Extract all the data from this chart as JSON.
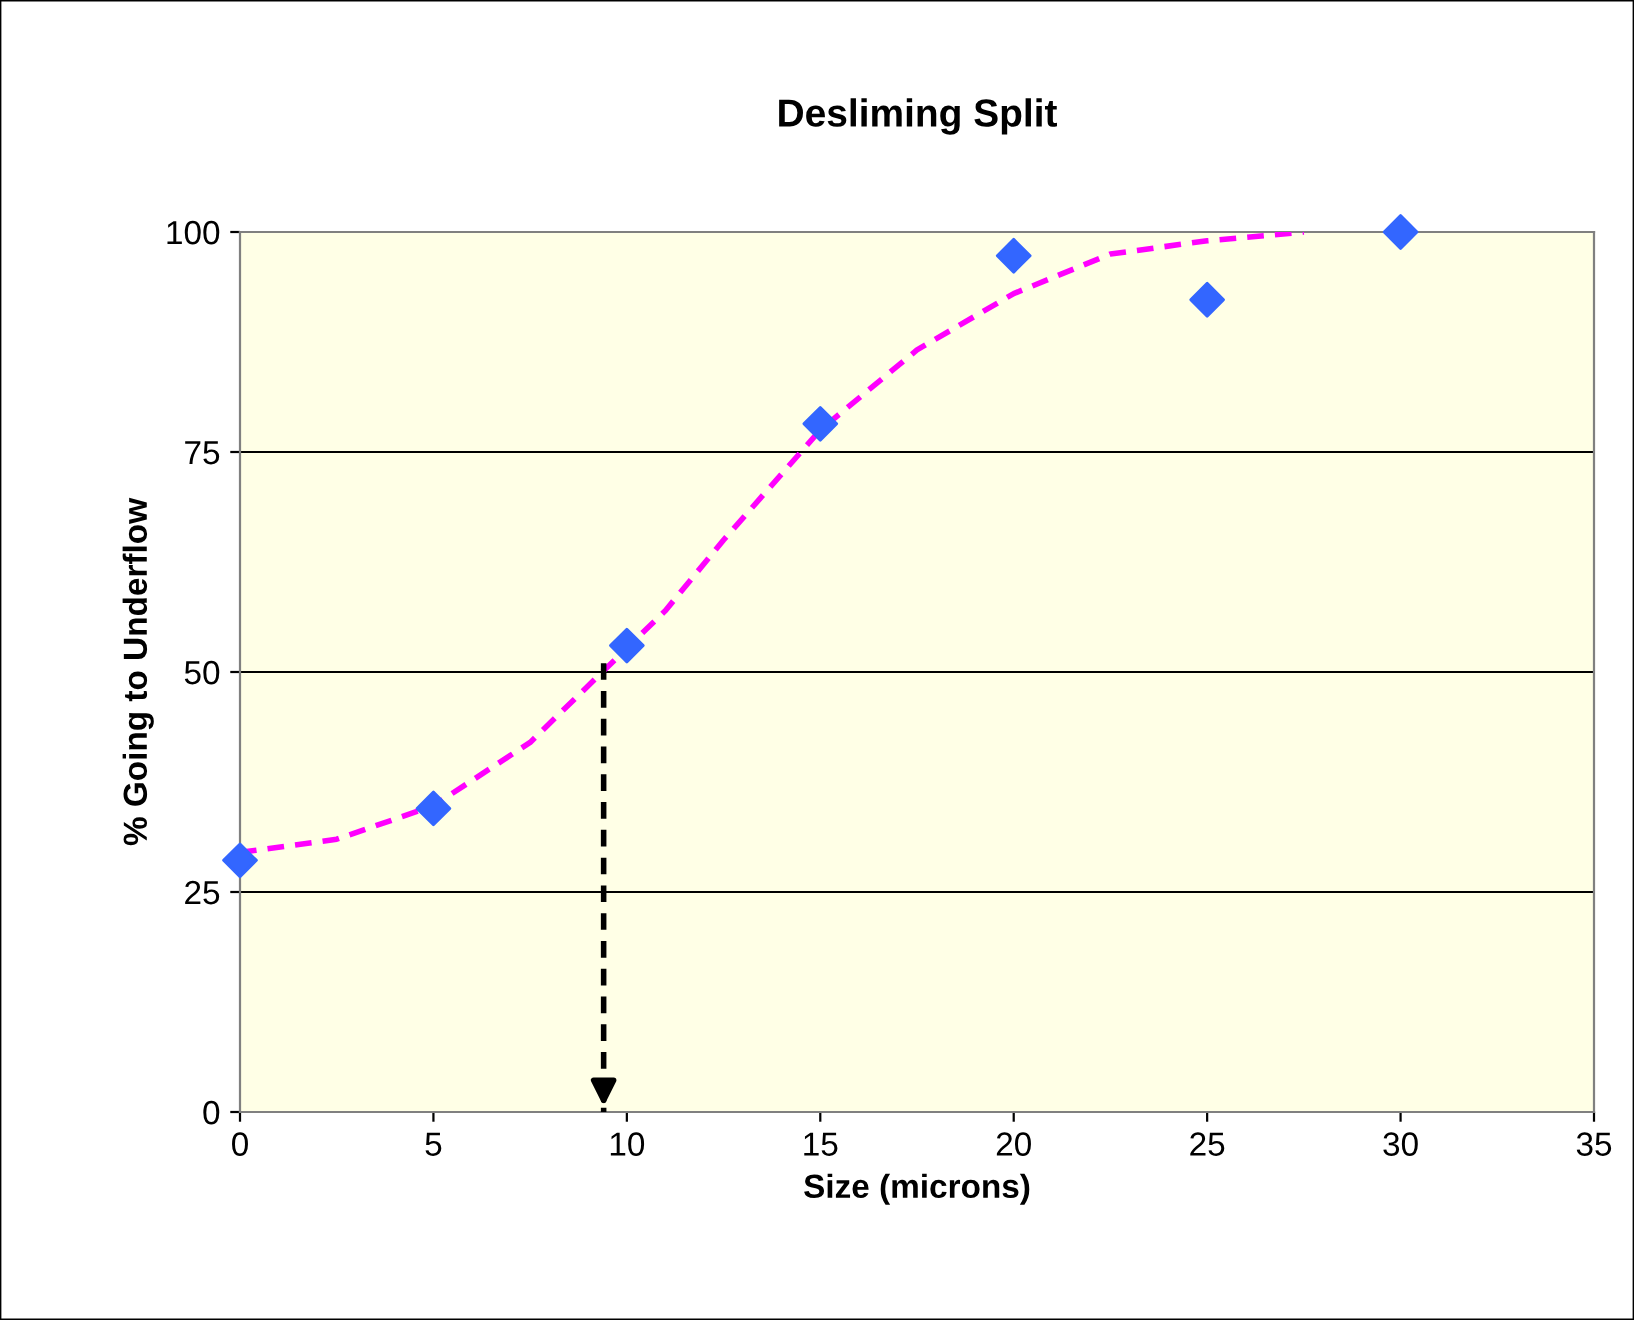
{
  "chart_data": {
    "type": "scatter",
    "title": "Desliming Split",
    "xlabel": "Size (microns)",
    "ylabel": "% Going to Underflow",
    "series": [
      {
        "color": "#3366ff",
        "marker": "diamond",
        "x": [
          0,
          5,
          10,
          15,
          20,
          25,
          30
        ],
        "values": [
          28.6,
          34.5,
          53,
          78.2,
          97.3,
          92.3,
          100
        ]
      },
      {
        "type": "line",
        "color": "#ff00ff",
        "line_style": "dashed",
        "marker": "none",
        "x": [
          0,
          2.5,
          5,
          7.5,
          11,
          12.5,
          15,
          17.5,
          20,
          22.5,
          25,
          27.5
        ],
        "values": [
          29.5,
          31,
          34.8,
          42,
          57,
          65,
          77.5,
          86.6,
          93,
          97.5,
          99,
          100
        ]
      },
      {
        "type": "line",
        "color": "#000000",
        "line_style": "dashed",
        "marker": "none",
        "x": [
          9.4,
          9.4
        ],
        "values": [
          51,
          0
        ]
      }
    ],
    "xlim": [
      0,
      35
    ],
    "xticks": [
      0,
      5,
      10,
      15,
      20,
      25,
      30,
      35
    ],
    "ylim": [
      0,
      100
    ],
    "yticks": [
      0,
      25,
      50,
      75,
      100
    ],
    "grid": "y"
  }
}
